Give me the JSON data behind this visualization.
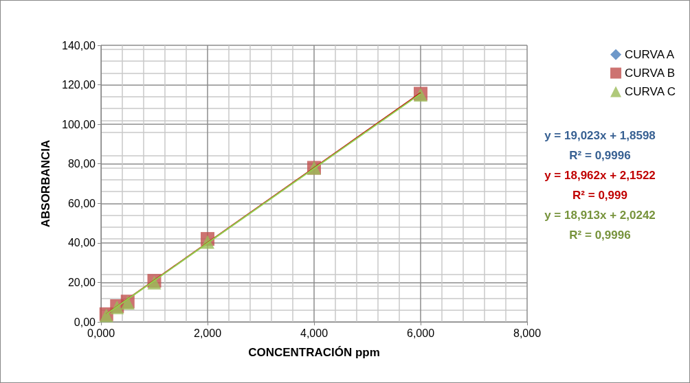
{
  "chart_data": {
    "type": "scatter",
    "xlabel": "CONCENTRACIÓN ppm",
    "ylabel": "ABSORBANCIA",
    "x": [
      0.1,
      0.3,
      0.5,
      1,
      2,
      4,
      6
    ],
    "series": [
      {
        "name": "CURVA A",
        "color": "#4a7ebb",
        "marker": "diamond",
        "values": [
          null,
          null,
          null,
          null,
          null,
          null,
          null
        ]
      },
      {
        "name": "CURVA B",
        "color": "#c0504d",
        "marker": "square",
        "values": [
          3.9,
          8,
          10.3,
          20.8,
          42,
          78,
          115.5
        ]
      },
      {
        "name": "CURVA C",
        "color": "#9bbb59",
        "marker": "triangle",
        "values": [
          3.3,
          7.4,
          9.7,
          19.9,
          40.5,
          78,
          115
        ]
      },
      {
        "type": "line",
        "color": "#c00000",
        "marker": "none",
        "values": [
          4,
          7.8,
          11.6,
          21.1,
          40.1,
          78,
          115.9
        ]
      },
      {
        "type": "line",
        "color": "#92d050",
        "marker": "none",
        "values": [
          3.9,
          7.7,
          11.5,
          20.9,
          39.9,
          77.7,
          115.5
        ]
      }
    ],
    "xlim": [
      0,
      8
    ],
    "xticks": [
      {
        "value": 0,
        "label": "0,000"
      },
      {
        "value": 2,
        "label": "2,000"
      },
      {
        "value": 4,
        "label": "4,000"
      },
      {
        "value": 6,
        "label": "6,000"
      },
      {
        "value": 8,
        "label": "8,000"
      }
    ],
    "ylim": [
      0,
      140
    ],
    "yticks": [
      {
        "value": 0,
        "label": "0,00"
      },
      {
        "value": 20,
        "label": "20,00"
      },
      {
        "value": 40,
        "label": "40,00"
      },
      {
        "value": 60,
        "label": "60,00"
      },
      {
        "value": 80,
        "label": "80,00"
      },
      {
        "value": 100,
        "label": "100,00"
      },
      {
        "value": 120,
        "label": "120,00"
      },
      {
        "value": 140,
        "label": "140,00"
      }
    ],
    "grid": true,
    "legend": "top right",
    "annotations": [
      "y = 19,023x + 1,8598",
      "R² = 0,9996",
      "y = 18,962x + 2,1522",
      "R² = 0,999",
      "y = 18,913x + 2,0242",
      "R² = 0,9996"
    ]
  }
}
